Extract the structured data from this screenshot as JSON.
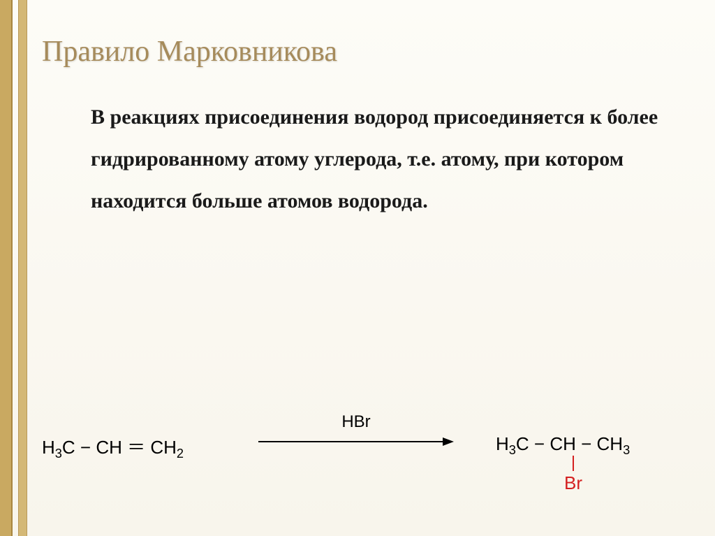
{
  "title": "Правило Марковникова",
  "body": "В реакциях присоединения водород присоединяется к более гидрированному атому углерода, т.е. атому, при котором находится больше атомов водорода.",
  "reaction": {
    "reactant_html": "H<sub>3</sub>C − CH ＝ CH<sub>2</sub>",
    "reagent": "HBr",
    "product_html": "H<sub>3</sub>C − CH − CH<sub>3</sub>",
    "substituent": "Br",
    "substituent_color": "#d42020",
    "arrow_color": "#000000"
  },
  "colors": {
    "title_color": "#a68b5b",
    "body_color": "#1a1a1a",
    "border_outer": "#c9a961",
    "border_inner": "#d4b876",
    "background_top": "#fdfcf7",
    "background_bottom": "#f8f5ec"
  },
  "typography": {
    "title_fontsize": 42,
    "body_fontsize": 30,
    "formula_fontsize": 26,
    "body_lineheight": 2.0,
    "body_fontweight": "bold"
  }
}
